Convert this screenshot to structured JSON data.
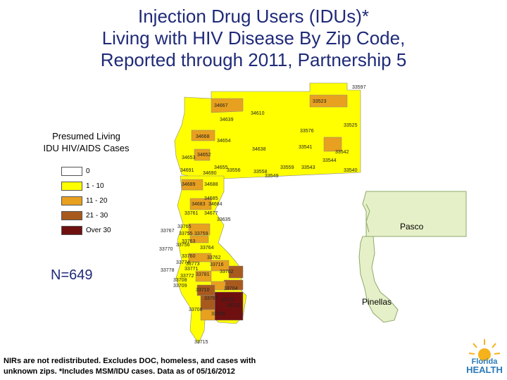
{
  "title": {
    "line1": "Injection Drug Users (IDUs)*",
    "line2": "Living with HIV Disease By Zip Code,",
    "line3": "Reported through 2011, Partnership 5"
  },
  "legend": {
    "title_line1": "Presumed Living",
    "title_line2": "IDU HIV/AIDS Cases",
    "items": [
      {
        "label": "0",
        "color": "#ffffff"
      },
      {
        "label": "1 - 10",
        "color": "#ffff00"
      },
      {
        "label": "11 - 20",
        "color": "#e8a020"
      },
      {
        "label": "21 - 30",
        "color": "#a85a1e"
      },
      {
        "label": "Over 30",
        "color": "#6e1010"
      }
    ]
  },
  "count_label": "N=649",
  "counties": {
    "pasco": "Pasco",
    "pinellas": "Pinellas"
  },
  "inset_colors": {
    "land": "#e6f0c8",
    "border": "#8ea86a"
  },
  "zip_labels": [
    "33597",
    "33523",
    "34667",
    "34610",
    "34639",
    "33576",
    "33525",
    "34668",
    "34654",
    "34638",
    "33541",
    "33542",
    "34653",
    "34652",
    "33544",
    "34691",
    "34690",
    "34655",
    "33556",
    "33558",
    "33559",
    "33543",
    "33540",
    "33549",
    "34689",
    "34688",
    "34685",
    "34683",
    "34684",
    "33761",
    "34677",
    "33759",
    "33767",
    "33765",
    "33755",
    "33635",
    "33763",
    "33764",
    "33756",
    "33770",
    "33760",
    "33762",
    "33774",
    "33773",
    "33716",
    "33778",
    "33771",
    "33781",
    "33702",
    "33772",
    "33709",
    "33710",
    "33704",
    "33708",
    "33707",
    "33711",
    "33712",
    "33706",
    "33705",
    "33715"
  ],
  "footnote": {
    "line1": "NIRs are not redistributed. Excludes DOC, homeless, and cases with",
    "line2": "unknown zips. *Includes MSM/IDU cases. Data as of 05/16/2012"
  },
  "logo": {
    "line1": "Florida",
    "line2": "HEALTH"
  }
}
